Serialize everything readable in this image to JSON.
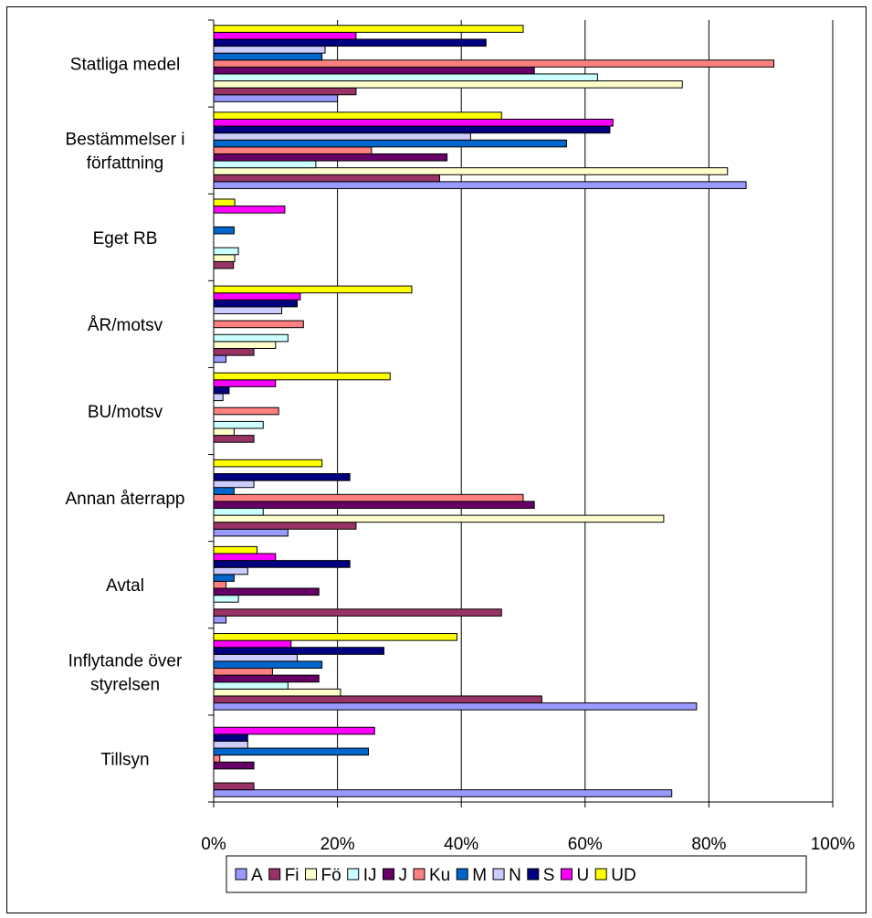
{
  "chart_data": {
    "type": "bar",
    "orientation": "horizontal",
    "categories": [
      [
        "Statliga medel"
      ],
      [
        "Bestämmelser i",
        "författning"
      ],
      [
        "Eget RB"
      ],
      [
        "ÅR/motsv"
      ],
      [
        "BU/motsv"
      ],
      [
        "Annan återrapp"
      ],
      [
        "Avtal"
      ],
      [
        "Inflytande över",
        "styrelsen"
      ],
      [
        "Tillsyn"
      ]
    ],
    "x_ticks": [
      "0%",
      "20%",
      "40%",
      "60%",
      "80%",
      "100%"
    ],
    "xlim": [
      0,
      100
    ],
    "grid": "vertical major gridlines",
    "legend_position": "bottom",
    "series": [
      {
        "name": "A",
        "color": "#9999ff",
        "values": [
          20,
          86,
          0,
          2,
          0,
          12,
          2,
          78,
          74
        ]
      },
      {
        "name": "Fi",
        "color": "#993366",
        "values": [
          23,
          36.5,
          3.2,
          6.5,
          6.5,
          23,
          46.5,
          53,
          6.5
        ]
      },
      {
        "name": "Fö",
        "color": "#ffffcc",
        "values": [
          75.7,
          83,
          3.4,
          10,
          3.3,
          72.7,
          0,
          20.5,
          0
        ]
      },
      {
        "name": "IJ",
        "color": "#ccffff",
        "values": [
          62,
          16.5,
          4,
          12,
          8,
          8,
          4,
          12,
          0
        ]
      },
      {
        "name": "J",
        "color": "#660066",
        "values": [
          51.8,
          37.7,
          0,
          0,
          0,
          51.8,
          17,
          17,
          6.5
        ]
      },
      {
        "name": "Ku",
        "color": "#ff8080",
        "values": [
          90.5,
          25.5,
          0,
          14.5,
          10.5,
          50,
          2,
          9.5,
          1
        ]
      },
      {
        "name": "M",
        "color": "#0066cc",
        "values": [
          17.5,
          57,
          3.3,
          0,
          0,
          3.3,
          3.3,
          17.5,
          25
        ]
      },
      {
        "name": "N",
        "color": "#ccccff",
        "values": [
          18,
          41.5,
          0,
          11,
          1.5,
          6.5,
          5.5,
          13.5,
          5.5
        ]
      },
      {
        "name": "S",
        "color": "#000080",
        "values": [
          44,
          64,
          0,
          13.5,
          2.5,
          22,
          22,
          27.5,
          5.5
        ]
      },
      {
        "name": "U",
        "color": "#ff00ff",
        "values": [
          23,
          64.5,
          11.5,
          14,
          10,
          0,
          10,
          12.5,
          26
        ]
      },
      {
        "name": "UD",
        "color": "#ffff00",
        "values": [
          50,
          46.5,
          3.4,
          32,
          28.5,
          17.5,
          7,
          39.3,
          0
        ]
      }
    ]
  }
}
